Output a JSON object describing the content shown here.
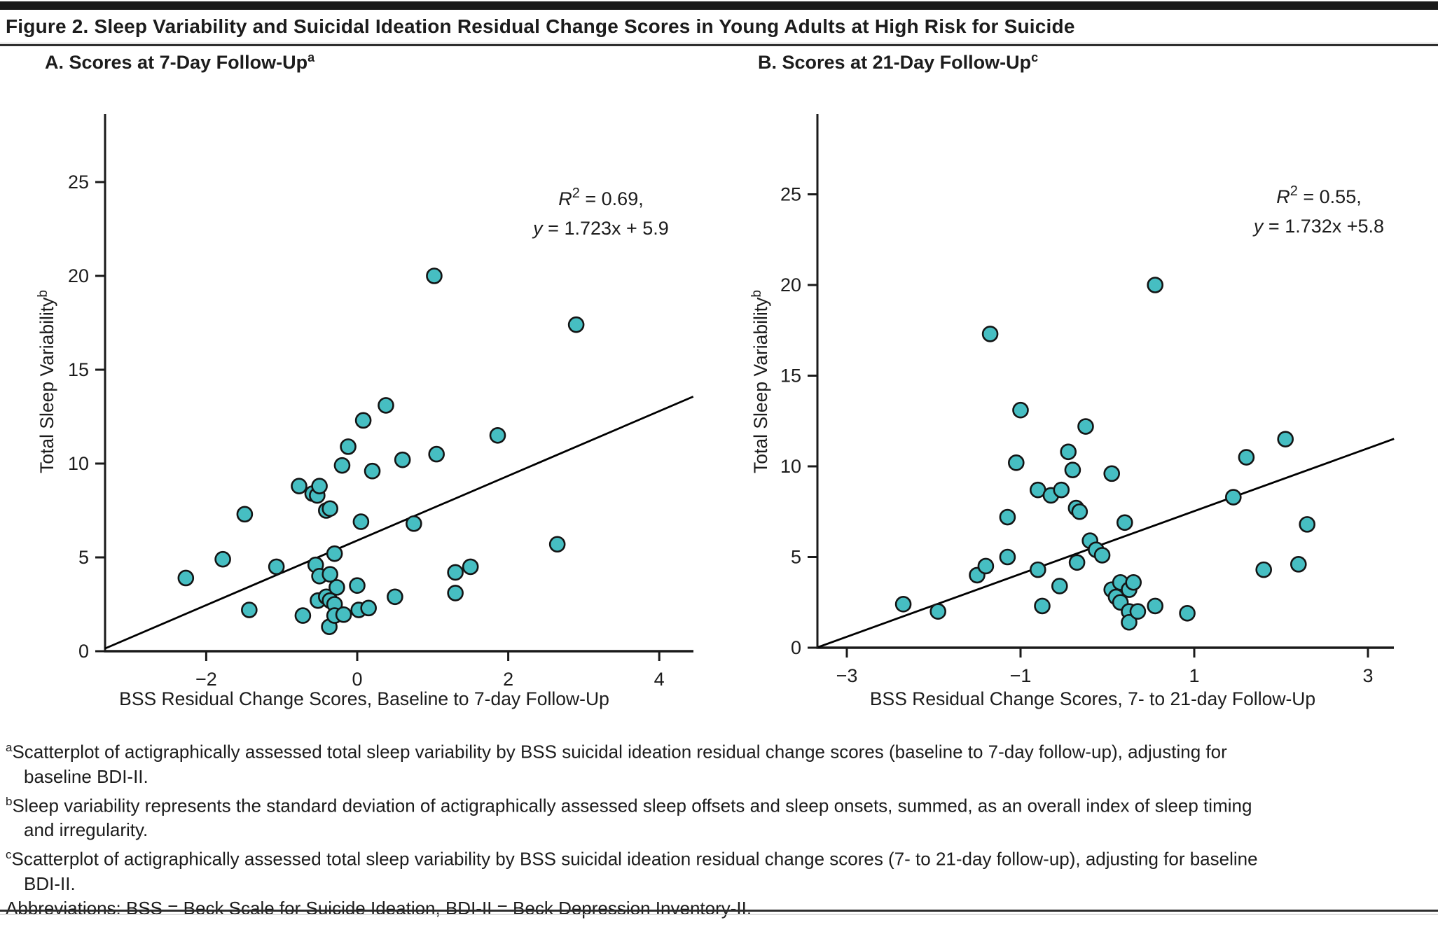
{
  "figure": {
    "title": "Figure 2. Sleep Variability and Suicidal Ideation Residual Change Scores in Young Adults at High Risk for Suicide"
  },
  "colors": {
    "marker_fill": "#46BEC2",
    "marker_stroke": "#141414",
    "line": "#000000",
    "axis": "#1a1a1a"
  },
  "chart_data": [
    {
      "type": "scatter",
      "panel_heading": "A. Scores at 7-Day Follow-Up",
      "panel_heading_sup": "a",
      "xlabel": "BSS Residual Change Scores, Baseline to 7-day Follow-Up",
      "ylabel": "Total Sleep Variability",
      "ylabel_sup": "b",
      "xlim": [
        -3.35,
        4.45
      ],
      "ylim": [
        0,
        28.5
      ],
      "xticks": [
        -2,
        0,
        2,
        4
      ],
      "yticks": [
        0,
        5,
        10,
        15,
        20,
        25
      ],
      "grid": false,
      "annotation": {
        "stat_var": "R",
        "stat_sup": "2",
        "stat_rest": " = 0.69,",
        "eq_var": "y",
        "eq_rest": " = 1.723x + 5.9",
        "r2_value": 0.69,
        "slope": 1.723,
        "intercept": 5.9
      },
      "regression_line": {
        "slope": 1.723,
        "intercept": 5.9,
        "x_start": -3.34,
        "x_end": 4.45
      },
      "points": [
        [
          -2.27,
          3.9
        ],
        [
          -1.78,
          4.9
        ],
        [
          -1.49,
          7.3
        ],
        [
          -1.43,
          2.2
        ],
        [
          -1.07,
          4.5
        ],
        [
          -0.77,
          8.8
        ],
        [
          -0.72,
          1.9
        ],
        [
          -0.59,
          8.4
        ],
        [
          -0.55,
          4.6
        ],
        [
          -0.53,
          8.3
        ],
        [
          -0.52,
          2.7
        ],
        [
          -0.5,
          8.8
        ],
        [
          -0.5,
          4.0
        ],
        [
          -0.41,
          7.5
        ],
        [
          -0.41,
          2.9
        ],
        [
          -0.37,
          1.3
        ],
        [
          -0.36,
          7.6
        ],
        [
          -0.36,
          4.1
        ],
        [
          -0.36,
          2.7
        ],
        [
          -0.3,
          5.2
        ],
        [
          -0.3,
          2.5
        ],
        [
          -0.3,
          1.9
        ],
        [
          -0.27,
          3.4
        ],
        [
          -0.2,
          9.9
        ],
        [
          -0.18,
          1.95
        ],
        [
          -0.12,
          10.9
        ],
        [
          0.0,
          3.5
        ],
        [
          0.02,
          2.2
        ],
        [
          0.05,
          6.9
        ],
        [
          0.08,
          12.3
        ],
        [
          0.15,
          2.3
        ],
        [
          0.2,
          9.6
        ],
        [
          0.38,
          13.1
        ],
        [
          0.5,
          2.9
        ],
        [
          0.6,
          10.2
        ],
        [
          0.75,
          6.8
        ],
        [
          1.02,
          20.0
        ],
        [
          1.05,
          10.5
        ],
        [
          1.3,
          4.2
        ],
        [
          1.3,
          3.1
        ],
        [
          1.5,
          4.5
        ],
        [
          1.86,
          11.5
        ],
        [
          2.65,
          5.7
        ],
        [
          2.9,
          17.4
        ]
      ]
    },
    {
      "type": "scatter",
      "panel_heading": "B. Scores at 21-Day Follow-Up",
      "panel_heading_sup": "c",
      "xlabel": "BSS Residual Change Scores, 7- to 21-day Follow-Up",
      "ylabel": "Total Sleep Variability",
      "ylabel_sup": "b",
      "xlim": [
        -3.35,
        3.5
      ],
      "ylim": [
        0,
        28.5
      ],
      "xticks": [
        -3,
        -1,
        1,
        3
      ],
      "yticks": [
        0,
        5,
        10,
        15,
        20,
        25
      ],
      "grid": false,
      "annotation": {
        "stat_var": "R",
        "stat_sup": "2",
        "stat_rest": " = 0.55,",
        "eq_var": "y",
        "eq_rest": " = 1.732x +5.8",
        "r2_value": 0.55,
        "slope": 1.732,
        "intercept": 5.8
      },
      "regression_line": {
        "slope": 1.732,
        "intercept": 5.8,
        "x_start": -3.33,
        "x_end": 3.3
      },
      "points": [
        [
          -2.35,
          2.4
        ],
        [
          -1.95,
          2.0
        ],
        [
          -1.5,
          4.0
        ],
        [
          -1.4,
          4.5
        ],
        [
          -1.35,
          17.3
        ],
        [
          -1.15,
          7.2
        ],
        [
          -1.15,
          5.0
        ],
        [
          -1.05,
          10.2
        ],
        [
          -1.0,
          13.1
        ],
        [
          -0.8,
          8.7
        ],
        [
          -0.8,
          4.3
        ],
        [
          -0.75,
          2.3
        ],
        [
          -0.65,
          8.4
        ],
        [
          -0.55,
          3.4
        ],
        [
          -0.53,
          8.7
        ],
        [
          -0.45,
          10.8
        ],
        [
          -0.4,
          9.8
        ],
        [
          -0.36,
          7.7
        ],
        [
          -0.35,
          4.7
        ],
        [
          -0.32,
          7.5
        ],
        [
          -0.25,
          12.2
        ],
        [
          -0.2,
          5.9
        ],
        [
          -0.13,
          5.4
        ],
        [
          -0.06,
          5.1
        ],
        [
          0.05,
          9.6
        ],
        [
          0.05,
          3.2
        ],
        [
          0.1,
          2.8
        ],
        [
          0.15,
          3.6
        ],
        [
          0.15,
          2.5
        ],
        [
          0.2,
          6.9
        ],
        [
          0.25,
          3.2
        ],
        [
          0.25,
          2.0
        ],
        [
          0.25,
          1.4
        ],
        [
          0.3,
          3.6
        ],
        [
          0.35,
          2.0
        ],
        [
          0.55,
          20.0
        ],
        [
          0.55,
          2.3
        ],
        [
          0.92,
          1.9
        ],
        [
          1.45,
          8.3
        ],
        [
          1.6,
          10.5
        ],
        [
          1.8,
          4.3
        ],
        [
          2.05,
          11.5
        ],
        [
          2.2,
          4.6
        ],
        [
          2.3,
          6.8
        ]
      ]
    }
  ],
  "footnotes": [
    {
      "sup": "a",
      "lines": [
        "Scatterplot of actigraphically assessed total sleep variability by BSS suicidal ideation residual change scores (baseline to 7-day follow-up), adjusting for",
        "baseline BDI-II."
      ]
    },
    {
      "sup": "b",
      "lines": [
        "Sleep variability represents the standard deviation of actigraphically assessed sleep offsets and sleep onsets, summed, as an overall index of sleep timing",
        "and irregularity."
      ]
    },
    {
      "sup": "c",
      "lines": [
        "Scatterplot of actigraphically assessed total sleep variability by BSS suicidal ideation residual change scores (7- to 21-day follow-up), adjusting for baseline",
        "BDI-II."
      ]
    },
    {
      "sup": "",
      "lines": [
        "Abbreviations: BSS = Beck Scale for Suicide Ideation, BDI-II = Beck Depression Inventory-II."
      ]
    }
  ]
}
